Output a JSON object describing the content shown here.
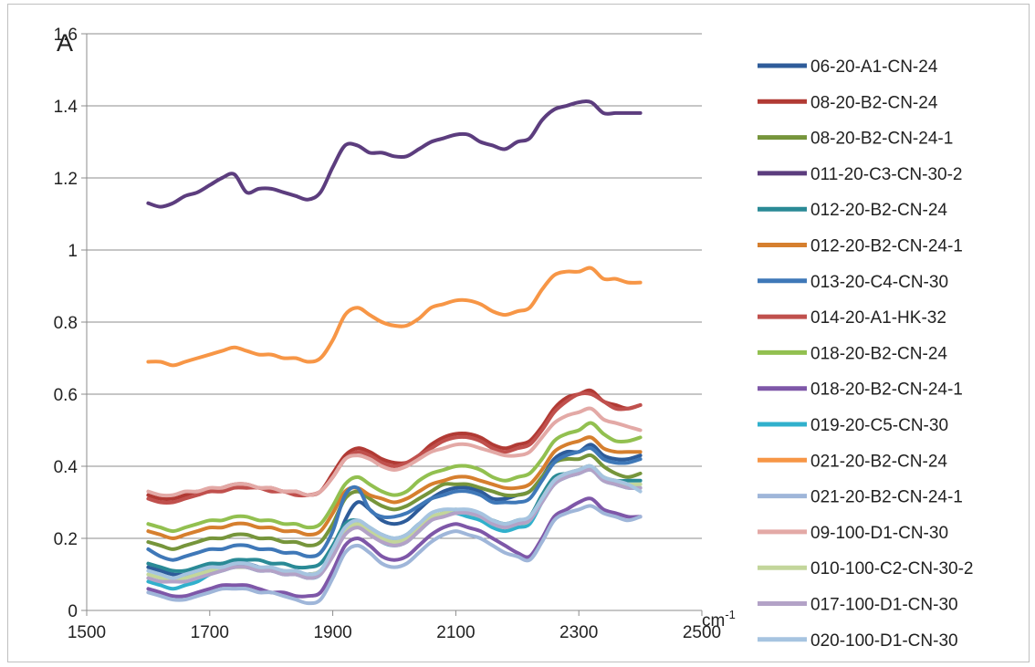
{
  "chart_data": {
    "type": "line",
    "title": "",
    "corner_label": "A",
    "xlabel": "cm",
    "xlabel_superscript": "-1",
    "ylabel": "",
    "xlim": [
      1500,
      2500
    ],
    "ylim": [
      0,
      1.6
    ],
    "x_ticks": [
      1500,
      1700,
      1900,
      2100,
      2300,
      2500
    ],
    "y_ticks": [
      "0",
      "0.2",
      "0.4",
      "0.6",
      "0.8",
      "1",
      "1.2",
      "1.4",
      "1.6"
    ],
    "grid": "horizontal",
    "legend_position": "right",
    "x": [
      1600,
      1620,
      1640,
      1660,
      1680,
      1700,
      1720,
      1740,
      1760,
      1780,
      1800,
      1820,
      1840,
      1860,
      1880,
      1900,
      1920,
      1940,
      1960,
      1980,
      2000,
      2020,
      2040,
      2060,
      2080,
      2100,
      2120,
      2140,
      2160,
      2180,
      2200,
      2220,
      2240,
      2260,
      2280,
      2300,
      2320,
      2340,
      2360,
      2380,
      2400
    ],
    "series": [
      {
        "name": "06-20-A1-CN-24",
        "color": "#2e5c9a",
        "values": [
          0.12,
          0.11,
          0.1,
          0.1,
          0.11,
          0.12,
          0.13,
          0.13,
          0.13,
          0.12,
          0.11,
          0.11,
          0.1,
          0.1,
          0.11,
          0.16,
          0.25,
          0.3,
          0.28,
          0.25,
          0.24,
          0.25,
          0.28,
          0.31,
          0.33,
          0.34,
          0.34,
          0.33,
          0.31,
          0.31,
          0.32,
          0.33,
          0.37,
          0.42,
          0.44,
          0.44,
          0.46,
          0.43,
          0.42,
          0.42,
          0.43
        ]
      },
      {
        "name": "08-20-B2-CN-24",
        "color": "#b13a34",
        "values": [
          0.32,
          0.31,
          0.31,
          0.32,
          0.33,
          0.33,
          0.34,
          0.35,
          0.35,
          0.34,
          0.34,
          0.33,
          0.33,
          0.32,
          0.33,
          0.38,
          0.43,
          0.45,
          0.44,
          0.42,
          0.41,
          0.41,
          0.43,
          0.46,
          0.48,
          0.49,
          0.49,
          0.48,
          0.46,
          0.45,
          0.46,
          0.47,
          0.51,
          0.56,
          0.59,
          0.6,
          0.61,
          0.58,
          0.57,
          0.56,
          0.57
        ]
      },
      {
        "name": "08-20-B2-CN-24-1",
        "color": "#76953b",
        "values": [
          0.19,
          0.18,
          0.17,
          0.18,
          0.19,
          0.2,
          0.2,
          0.21,
          0.21,
          0.2,
          0.2,
          0.19,
          0.19,
          0.18,
          0.19,
          0.24,
          0.31,
          0.33,
          0.31,
          0.29,
          0.28,
          0.29,
          0.31,
          0.33,
          0.35,
          0.35,
          0.35,
          0.34,
          0.33,
          0.32,
          0.32,
          0.33,
          0.37,
          0.41,
          0.42,
          0.42,
          0.43,
          0.4,
          0.38,
          0.37,
          0.38
        ]
      },
      {
        "name": "011-20-C3-CN-30-2",
        "color": "#5c3d7e",
        "values": [
          1.13,
          1.12,
          1.13,
          1.15,
          1.16,
          1.18,
          1.2,
          1.21,
          1.16,
          1.17,
          1.17,
          1.16,
          1.15,
          1.14,
          1.16,
          1.23,
          1.29,
          1.29,
          1.27,
          1.27,
          1.26,
          1.26,
          1.28,
          1.3,
          1.31,
          1.32,
          1.32,
          1.3,
          1.29,
          1.28,
          1.3,
          1.31,
          1.36,
          1.39,
          1.4,
          1.41,
          1.41,
          1.38,
          1.38,
          1.38,
          1.38
        ]
      },
      {
        "name": "012-20-B2-CN-24",
        "color": "#2a8a96",
        "values": [
          0.13,
          0.12,
          0.11,
          0.11,
          0.12,
          0.13,
          0.13,
          0.14,
          0.14,
          0.14,
          0.13,
          0.13,
          0.12,
          0.12,
          0.13,
          0.18,
          0.24,
          0.25,
          0.23,
          0.21,
          0.2,
          0.21,
          0.24,
          0.26,
          0.27,
          0.28,
          0.27,
          0.26,
          0.25,
          0.24,
          0.25,
          0.26,
          0.32,
          0.37,
          0.38,
          0.39,
          0.4,
          0.37,
          0.36,
          0.36,
          0.36
        ]
      },
      {
        "name": "012-20-B2-CN-24-1",
        "color": "#d67f2e",
        "values": [
          0.22,
          0.21,
          0.2,
          0.21,
          0.22,
          0.23,
          0.23,
          0.24,
          0.24,
          0.23,
          0.23,
          0.22,
          0.22,
          0.21,
          0.22,
          0.27,
          0.33,
          0.34,
          0.32,
          0.31,
          0.3,
          0.31,
          0.33,
          0.35,
          0.36,
          0.37,
          0.37,
          0.36,
          0.35,
          0.34,
          0.34,
          0.35,
          0.39,
          0.44,
          0.46,
          0.47,
          0.48,
          0.45,
          0.44,
          0.44,
          0.44
        ]
      },
      {
        "name": "013-20-C4-CN-30",
        "color": "#3f78b8",
        "values": [
          0.17,
          0.15,
          0.14,
          0.15,
          0.16,
          0.17,
          0.17,
          0.18,
          0.18,
          0.17,
          0.17,
          0.16,
          0.16,
          0.15,
          0.16,
          0.22,
          0.32,
          0.34,
          0.28,
          0.26,
          0.26,
          0.27,
          0.29,
          0.31,
          0.32,
          0.33,
          0.33,
          0.32,
          0.3,
          0.3,
          0.3,
          0.31,
          0.36,
          0.41,
          0.43,
          0.44,
          0.45,
          0.42,
          0.41,
          0.41,
          0.42
        ]
      },
      {
        "name": "014-20-A1-HK-32",
        "color": "#c0504d",
        "values": [
          0.31,
          0.3,
          0.3,
          0.31,
          0.32,
          0.33,
          0.33,
          0.34,
          0.34,
          0.34,
          0.33,
          0.33,
          0.32,
          0.32,
          0.33,
          0.37,
          0.42,
          0.44,
          0.43,
          0.41,
          0.4,
          0.41,
          0.43,
          0.45,
          0.47,
          0.48,
          0.48,
          0.47,
          0.45,
          0.44,
          0.45,
          0.46,
          0.5,
          0.55,
          0.58,
          0.6,
          0.6,
          0.58,
          0.56,
          0.56,
          0.57
        ]
      },
      {
        "name": "018-20-B2-CN-24",
        "color": "#92c050",
        "values": [
          0.24,
          0.23,
          0.22,
          0.23,
          0.24,
          0.25,
          0.25,
          0.26,
          0.26,
          0.25,
          0.25,
          0.24,
          0.24,
          0.23,
          0.24,
          0.29,
          0.35,
          0.37,
          0.35,
          0.33,
          0.32,
          0.33,
          0.36,
          0.38,
          0.39,
          0.4,
          0.4,
          0.39,
          0.37,
          0.36,
          0.37,
          0.38,
          0.42,
          0.47,
          0.49,
          0.5,
          0.52,
          0.49,
          0.47,
          0.47,
          0.48
        ]
      },
      {
        "name": "018-20-B2-CN-24-1",
        "color": "#7e57a8",
        "values": [
          0.06,
          0.05,
          0.04,
          0.04,
          0.05,
          0.06,
          0.07,
          0.07,
          0.07,
          0.06,
          0.05,
          0.05,
          0.04,
          0.04,
          0.05,
          0.11,
          0.18,
          0.2,
          0.18,
          0.15,
          0.14,
          0.15,
          0.18,
          0.21,
          0.23,
          0.24,
          0.23,
          0.22,
          0.2,
          0.18,
          0.16,
          0.15,
          0.2,
          0.26,
          0.28,
          0.3,
          0.31,
          0.28,
          0.27,
          0.26,
          0.26
        ]
      },
      {
        "name": "019-20-C5-CN-30",
        "color": "#31b0cc",
        "values": [
          0.08,
          0.07,
          0.06,
          0.07,
          0.08,
          0.1,
          0.11,
          0.12,
          0.12,
          0.11,
          0.11,
          0.1,
          0.1,
          0.09,
          0.1,
          0.16,
          0.22,
          0.24,
          0.22,
          0.19,
          0.18,
          0.19,
          0.22,
          0.25,
          0.27,
          0.27,
          0.26,
          0.25,
          0.23,
          0.22,
          0.23,
          0.24,
          0.3,
          0.35,
          0.37,
          0.38,
          0.39,
          0.36,
          0.35,
          0.34,
          0.34
        ]
      },
      {
        "name": "021-20-B2-CN-24",
        "color": "#f79646",
        "values": [
          0.69,
          0.69,
          0.68,
          0.69,
          0.7,
          0.71,
          0.72,
          0.73,
          0.72,
          0.71,
          0.71,
          0.7,
          0.7,
          0.69,
          0.7,
          0.75,
          0.82,
          0.84,
          0.82,
          0.8,
          0.79,
          0.79,
          0.81,
          0.84,
          0.85,
          0.86,
          0.86,
          0.85,
          0.83,
          0.82,
          0.83,
          0.84,
          0.89,
          0.93,
          0.94,
          0.94,
          0.95,
          0.92,
          0.92,
          0.91,
          0.91
        ]
      },
      {
        "name": "021-20-B2-CN-24-1",
        "color": "#9fb6d9",
        "values": [
          0.05,
          0.04,
          0.03,
          0.03,
          0.04,
          0.05,
          0.06,
          0.06,
          0.06,
          0.05,
          0.05,
          0.04,
          0.03,
          0.02,
          0.03,
          0.09,
          0.16,
          0.18,
          0.16,
          0.13,
          0.12,
          0.13,
          0.16,
          0.19,
          0.21,
          0.22,
          0.21,
          0.2,
          0.18,
          0.16,
          0.15,
          0.14,
          0.19,
          0.25,
          0.27,
          0.28,
          0.29,
          0.27,
          0.26,
          0.25,
          0.26
        ]
      },
      {
        "name": "09-100-D1-CN-30",
        "color": "#e3a9a6",
        "values": [
          0.33,
          0.32,
          0.32,
          0.33,
          0.33,
          0.34,
          0.34,
          0.35,
          0.35,
          0.34,
          0.34,
          0.33,
          0.33,
          0.32,
          0.33,
          0.37,
          0.42,
          0.43,
          0.42,
          0.4,
          0.39,
          0.4,
          0.42,
          0.44,
          0.45,
          0.46,
          0.46,
          0.45,
          0.44,
          0.43,
          0.43,
          0.44,
          0.48,
          0.52,
          0.54,
          0.55,
          0.56,
          0.53,
          0.52,
          0.51,
          0.5
        ]
      },
      {
        "name": "010-100-C2-CN-30-2",
        "color": "#c3d69b",
        "values": [
          0.1,
          0.09,
          0.08,
          0.09,
          0.1,
          0.11,
          0.12,
          0.12,
          0.12,
          0.12,
          0.11,
          0.11,
          0.1,
          0.1,
          0.11,
          0.16,
          0.22,
          0.24,
          0.22,
          0.2,
          0.19,
          0.2,
          0.23,
          0.26,
          0.27,
          0.28,
          0.27,
          0.26,
          0.24,
          0.23,
          0.24,
          0.25,
          0.31,
          0.36,
          0.38,
          0.39,
          0.4,
          0.37,
          0.36,
          0.35,
          0.35
        ]
      },
      {
        "name": "017-100-D1-CN-30",
        "color": "#b3a2c7",
        "values": [
          0.09,
          0.08,
          0.08,
          0.08,
          0.09,
          0.1,
          0.11,
          0.12,
          0.12,
          0.11,
          0.11,
          0.1,
          0.1,
          0.09,
          0.1,
          0.15,
          0.21,
          0.23,
          0.21,
          0.19,
          0.18,
          0.19,
          0.22,
          0.25,
          0.26,
          0.27,
          0.27,
          0.26,
          0.24,
          0.23,
          0.24,
          0.25,
          0.3,
          0.35,
          0.37,
          0.38,
          0.39,
          0.36,
          0.35,
          0.34,
          0.34
        ]
      },
      {
        "name": "020-100-D1-CN-30",
        "color": "#a6c4e0",
        "values": [
          0.11,
          0.1,
          0.09,
          0.1,
          0.11,
          0.12,
          0.12,
          0.13,
          0.13,
          0.12,
          0.12,
          0.11,
          0.11,
          0.1,
          0.11,
          0.17,
          0.23,
          0.25,
          0.23,
          0.21,
          0.2,
          0.21,
          0.24,
          0.27,
          0.28,
          0.28,
          0.28,
          0.27,
          0.25,
          0.24,
          0.25,
          0.26,
          0.31,
          0.36,
          0.38,
          0.39,
          0.4,
          0.37,
          0.36,
          0.35,
          0.33
        ]
      }
    ]
  }
}
